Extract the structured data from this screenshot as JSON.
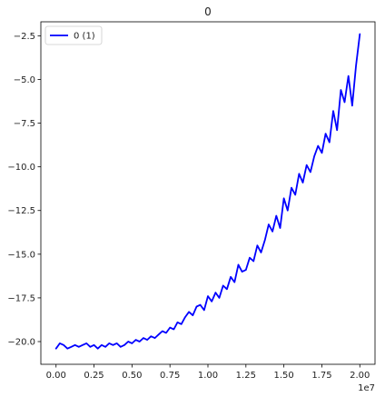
{
  "chart_data": {
    "type": "line",
    "title": "0",
    "xlabel": "",
    "ylabel": "",
    "x_exponent_label": "1e7",
    "xlim": [
      -1000000,
      21000000
    ],
    "ylim": [
      -21.3,
      -1.7
    ],
    "xticks": [
      0,
      2500000,
      5000000,
      7500000,
      10000000,
      12500000,
      15000000,
      17500000,
      20000000
    ],
    "xtick_labels": [
      "0.00",
      "0.25",
      "0.50",
      "0.75",
      "1.00",
      "1.25",
      "1.50",
      "1.75",
      "2.00"
    ],
    "yticks": [
      -20.0,
      -17.5,
      -15.0,
      -12.5,
      -10.0,
      -7.5,
      -5.0,
      -2.5
    ],
    "ytick_labels": [
      "−20.0",
      "−17.5",
      "−15.0",
      "−12.5",
      "−10.0",
      "−7.5",
      "−5.0",
      "−2.5"
    ],
    "grid": false,
    "legend_position": "top-left",
    "series": [
      {
        "name": "0 (1)",
        "color": "#0000ff",
        "x": [
          0,
          250000,
          500000,
          750000,
          1000000,
          1250000,
          1500000,
          1750000,
          2000000,
          2250000,
          2500000,
          2750000,
          3000000,
          3250000,
          3500000,
          3750000,
          4000000,
          4250000,
          4500000,
          4750000,
          5000000,
          5250000,
          5500000,
          5750000,
          6000000,
          6250000,
          6500000,
          6750000,
          7000000,
          7250000,
          7500000,
          7750000,
          8000000,
          8250000,
          8500000,
          8750000,
          9000000,
          9250000,
          9500000,
          9750000,
          10000000,
          10250000,
          10500000,
          10750000,
          11000000,
          11250000,
          11500000,
          11750000,
          12000000,
          12250000,
          12500000,
          12750000,
          13000000,
          13250000,
          13500000,
          13750000,
          14000000,
          14250000,
          14500000,
          14750000,
          15000000,
          15250000,
          15500000,
          15750000,
          16000000,
          16250000,
          16500000,
          16750000,
          17000000,
          17250000,
          17500000,
          17750000,
          18000000,
          18250000,
          18500000,
          18750000,
          19000000,
          19250000,
          19500000,
          19750000,
          20000000
        ],
        "values": [
          -20.4,
          -20.1,
          -20.2,
          -20.4,
          -20.3,
          -20.2,
          -20.3,
          -20.2,
          -20.1,
          -20.3,
          -20.2,
          -20.4,
          -20.2,
          -20.3,
          -20.1,
          -20.2,
          -20.1,
          -20.3,
          -20.2,
          -20.0,
          -20.1,
          -19.9,
          -20.0,
          -19.8,
          -19.9,
          -19.7,
          -19.8,
          -19.6,
          -19.4,
          -19.5,
          -19.2,
          -19.3,
          -18.9,
          -19.0,
          -18.6,
          -18.3,
          -18.5,
          -18.0,
          -17.9,
          -18.2,
          -17.4,
          -17.7,
          -17.2,
          -17.5,
          -16.8,
          -17.0,
          -16.3,
          -16.6,
          -15.6,
          -16.0,
          -15.9,
          -15.2,
          -15.4,
          -14.5,
          -14.9,
          -14.2,
          -13.3,
          -13.7,
          -12.8,
          -13.5,
          -11.8,
          -12.5,
          -11.2,
          -11.6,
          -10.4,
          -10.9,
          -9.9,
          -10.3,
          -9.4,
          -8.8,
          -9.2,
          -8.1,
          -8.6,
          -6.8,
          -7.9,
          -5.6,
          -6.3,
          -4.8,
          -6.5,
          -4.2,
          -2.4
        ]
      }
    ]
  }
}
